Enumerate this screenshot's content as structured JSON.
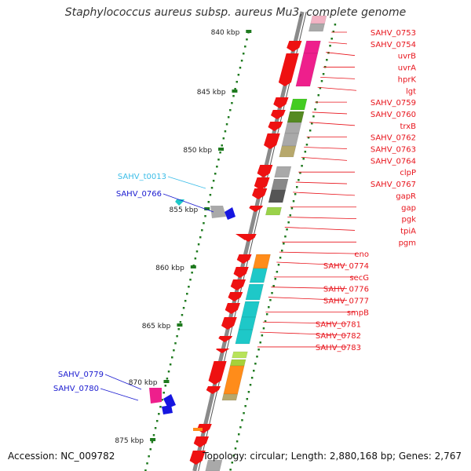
{
  "title": "Staphylococcus aureus subsp. aureus Mu3, complete genome",
  "accession": "Accession: NC_009782",
  "topology": "Topology: circular; Length: 2,880,168 bp; Genes: 2,767",
  "colors": {
    "backbone": "#8a8a8a",
    "red_label": "#e8141c",
    "blue_label": "#1a1ad0",
    "cyan_label": "#3bbde8",
    "tick": "#1f7a1f",
    "cds_red": "#ee1111",
    "rna_cyan": "#1ec8c8",
    "magenta": "#ee1f8c",
    "green": "#44cc22",
    "orange": "#ff8c1a",
    "gray": "#a9a9a9",
    "blue": "#1616e0"
  },
  "scale_ticks": [
    {
      "label": "840 kbp",
      "kbp": 840
    },
    {
      "label": "845 kbp",
      "kbp": 845
    },
    {
      "label": "850 kbp",
      "kbp": 850
    },
    {
      "label": "855 kbp",
      "kbp": 855
    },
    {
      "label": "860 kbp",
      "kbp": 860
    },
    {
      "label": "865 kbp",
      "kbp": 865
    },
    {
      "label": "870 kbp",
      "kbp": 870
    },
    {
      "label": "875 kbp",
      "kbp": 875
    }
  ],
  "right_labels": [
    "SAHV_0753",
    "SAHV_0754",
    "uvrB",
    "uvrA",
    "hprK",
    "lgt",
    "SAHV_0759",
    "SAHV_0760",
    "trxB",
    "SAHV_0762",
    "SAHV_0763",
    "SAHV_0764",
    "clpP",
    "SAHV_0767",
    "gapR",
    "gap",
    "pgk",
    "tpiA",
    "pgm",
    "eno",
    "SAHV_0774",
    "secG",
    "SAHV_0776",
    "SAHV_0777",
    "smpB",
    "SAHV_0781",
    "SAHV_0782",
    "SAHV_0783"
  ],
  "left_labels": [
    {
      "text": "SAHV_t0013",
      "kind": "cyan"
    },
    {
      "text": "SAHV_0766",
      "kind": "blue"
    },
    {
      "text": "SAHV_0779",
      "kind": "blue"
    },
    {
      "text": "SAHV_0780",
      "kind": "blue"
    }
  ]
}
